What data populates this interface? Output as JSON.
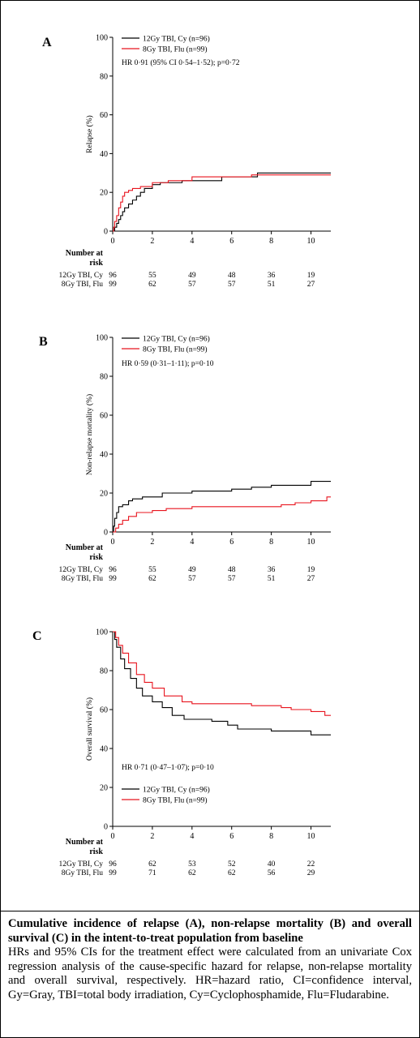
{
  "caption": {
    "title": "Cumulative incidence of relapse (A), non-relapse mortality (B) and overall survival (C) in the intent-to-treat population from baseline",
    "body": "HRs and 95% CIs for the treatment effect were calculated from an univariate Cox regression analysis of the cause-specific hazard for relapse, non-relapse mortality and overall survival, respectively. HR=hazard ratio, CI=confidence interval, Gy=Gray, TBI=total body irradiation, Cy=Cyclophosphamide, Flu=Fludarabine."
  },
  "colors": {
    "series1": "#000000",
    "series2": "#e8141e"
  },
  "chart_data": [
    {
      "panel_label": "A",
      "type": "line",
      "ylabel": "Relapse (%)",
      "ylim": [
        0,
        100
      ],
      "xlim": [
        0,
        11
      ],
      "xticks": [
        0,
        2,
        4,
        6,
        8,
        10
      ],
      "yticks": [
        0,
        20,
        40,
        60,
        80,
        100
      ],
      "legend_position": "top-left",
      "annotation": "HR 0·91 (95% CI 0·54–1·52); p=0·72",
      "series": [
        {
          "name": "12Gy TBI, Cy (n=96)",
          "color": "#000000",
          "step": true,
          "points": [
            [
              0,
              0
            ],
            [
              0.1,
              2
            ],
            [
              0.2,
              4
            ],
            [
              0.3,
              6
            ],
            [
              0.4,
              8
            ],
            [
              0.5,
              10
            ],
            [
              0.6,
              12
            ],
            [
              0.8,
              14
            ],
            [
              1.0,
              16
            ],
            [
              1.2,
              18
            ],
            [
              1.4,
              20
            ],
            [
              1.6,
              22
            ],
            [
              2.0,
              24
            ],
            [
              2.4,
              25
            ],
            [
              3.5,
              26
            ],
            [
              5.5,
              28
            ],
            [
              7.3,
              30
            ],
            [
              11,
              30
            ]
          ]
        },
        {
          "name": "8Gy TBI, Flu (n=99)",
          "color": "#e8141e",
          "step": true,
          "points": [
            [
              0,
              0
            ],
            [
              0.05,
              2
            ],
            [
              0.1,
              5
            ],
            [
              0.2,
              8
            ],
            [
              0.3,
              12
            ],
            [
              0.4,
              15
            ],
            [
              0.5,
              18
            ],
            [
              0.6,
              20
            ],
            [
              0.8,
              21
            ],
            [
              1.0,
              22
            ],
            [
              1.4,
              23
            ],
            [
              2.0,
              25
            ],
            [
              2.8,
              26
            ],
            [
              4.0,
              28
            ],
            [
              7.0,
              29
            ],
            [
              11,
              29
            ]
          ]
        }
      ],
      "risk_table": {
        "header_line1": "Number at",
        "header_line2": "risk",
        "times": [
          0,
          2,
          4,
          6,
          8,
          10
        ],
        "rows": [
          {
            "label": "12Gy TBI, Cy",
            "values": [
              "96",
              "55",
              "49",
              "48",
              "36",
              "19"
            ]
          },
          {
            "label": "8Gy TBI, Flu",
            "values": [
              "99",
              "62",
              "57",
              "57",
              "51",
              "27"
            ]
          }
        ]
      }
    },
    {
      "panel_label": "B",
      "type": "line",
      "ylabel": "Non-relapse mortality (%)",
      "ylim": [
        0,
        100
      ],
      "xlim": [
        0,
        11
      ],
      "xticks": [
        0,
        2,
        4,
        6,
        8,
        10
      ],
      "yticks": [
        0,
        20,
        40,
        60,
        80,
        100
      ],
      "legend_position": "top-left",
      "annotation": "HR 0·59 (0·31–1·11); p=0·10",
      "series": [
        {
          "name": "12Gy TBI, Cy (n=96)",
          "color": "#000000",
          "step": true,
          "points": [
            [
              0,
              0
            ],
            [
              0.05,
              3
            ],
            [
              0.1,
              7
            ],
            [
              0.2,
              10
            ],
            [
              0.3,
              13
            ],
            [
              0.5,
              14
            ],
            [
              0.8,
              16
            ],
            [
              1.0,
              17
            ],
            [
              1.5,
              18
            ],
            [
              2.5,
              20
            ],
            [
              4.0,
              21
            ],
            [
              6.0,
              22
            ],
            [
              7.0,
              23
            ],
            [
              8.0,
              24
            ],
            [
              10.0,
              26
            ],
            [
              11,
              26
            ]
          ]
        },
        {
          "name": "8Gy TBI, Flu (n=99)",
          "color": "#e8141e",
          "step": true,
          "points": [
            [
              0,
              0
            ],
            [
              0.15,
              2
            ],
            [
              0.3,
              4
            ],
            [
              0.5,
              6
            ],
            [
              0.8,
              8
            ],
            [
              1.2,
              10
            ],
            [
              2.0,
              11
            ],
            [
              2.7,
              12
            ],
            [
              4.0,
              13
            ],
            [
              8.5,
              14
            ],
            [
              9.2,
              15
            ],
            [
              10.0,
              16
            ],
            [
              10.8,
              18
            ],
            [
              11,
              18
            ]
          ]
        }
      ],
      "risk_table": {
        "header_line1": "Number at",
        "header_line2": "risk",
        "times": [
          0,
          2,
          4,
          6,
          8,
          10
        ],
        "rows": [
          {
            "label": "12Gy TBI, Cy",
            "values": [
              "96",
              "55",
              "49",
              "48",
              "36",
              "19"
            ]
          },
          {
            "label": "8Gy TBI, Flu",
            "values": [
              "99",
              "62",
              "57",
              "57",
              "51",
              "27"
            ]
          }
        ]
      }
    },
    {
      "panel_label": "C",
      "type": "line",
      "ylabel": "Overall survival (%)",
      "ylim": [
        0,
        100
      ],
      "xlim": [
        0,
        11
      ],
      "xticks": [
        0,
        2,
        4,
        6,
        8,
        10
      ],
      "yticks": [
        0,
        20,
        40,
        60,
        80,
        100
      ],
      "legend_position": "bottom-left",
      "annotation": "HR 0·71 (0·47–1·07); p=0·10",
      "series": [
        {
          "name": "12Gy TBI, Cy (n=96)",
          "color": "#000000",
          "step": true,
          "points": [
            [
              0,
              100
            ],
            [
              0.1,
              96
            ],
            [
              0.2,
              92
            ],
            [
              0.4,
              86
            ],
            [
              0.6,
              81
            ],
            [
              0.9,
              76
            ],
            [
              1.2,
              71
            ],
            [
              1.5,
              67
            ],
            [
              2.0,
              64
            ],
            [
              2.5,
              61
            ],
            [
              3.0,
              57
            ],
            [
              3.6,
              55
            ],
            [
              5.0,
              54
            ],
            [
              5.8,
              52
            ],
            [
              6.3,
              50
            ],
            [
              8.0,
              49
            ],
            [
              10.0,
              47
            ],
            [
              11,
              47
            ]
          ]
        },
        {
          "name": "8Gy TBI, Flu (n=99)",
          "color": "#e8141e",
          "step": true,
          "points": [
            [
              0,
              100
            ],
            [
              0.15,
              97
            ],
            [
              0.3,
              93
            ],
            [
              0.5,
              89
            ],
            [
              0.8,
              84
            ],
            [
              1.2,
              78
            ],
            [
              1.6,
              74
            ],
            [
              2.0,
              71
            ],
            [
              2.6,
              67
            ],
            [
              3.5,
              64
            ],
            [
              4.0,
              63
            ],
            [
              7.0,
              62
            ],
            [
              8.5,
              61
            ],
            [
              9.0,
              60
            ],
            [
              10.0,
              59
            ],
            [
              10.7,
              57
            ],
            [
              11,
              57
            ]
          ]
        }
      ],
      "risk_table": {
        "header_line1": "Number at",
        "header_line2": "risk",
        "times": [
          0,
          2,
          4,
          6,
          8,
          10
        ],
        "rows": [
          {
            "label": "12Gy TBI, Cy",
            "values": [
              "96",
              "62",
              "53",
              "52",
              "40",
              "22"
            ]
          },
          {
            "label": "8Gy TBI, Flu",
            "values": [
              "99",
              "71",
              "62",
              "62",
              "56",
              "29"
            ]
          }
        ]
      }
    }
  ]
}
